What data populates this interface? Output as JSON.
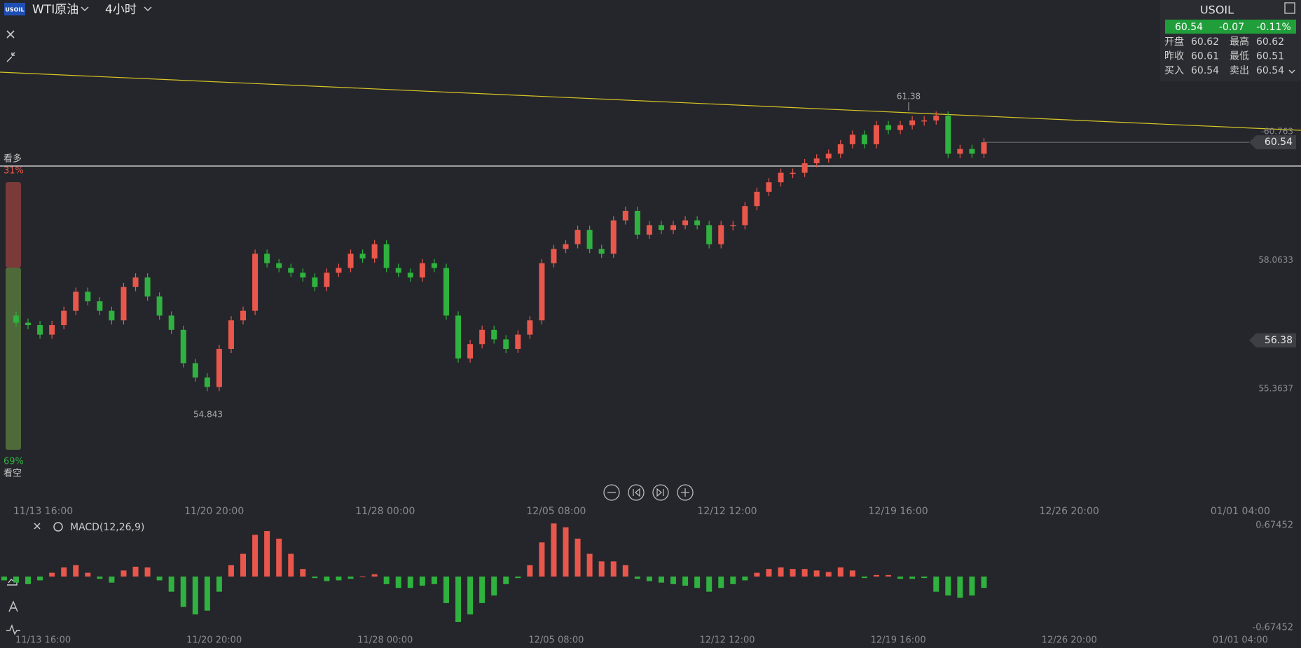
{
  "header": {
    "badge": "USOIL",
    "symbol": "WTI原油",
    "interval": "4小时"
  },
  "quote": {
    "symbol": "USOIL",
    "price": "60.54",
    "change": "-0.07",
    "change_pct": "-0.11%",
    "rows": [
      [
        "开盘",
        "60.62",
        "最高",
        "60.62"
      ],
      [
        "昨收",
        "60.61",
        "最低",
        "60.51"
      ],
      [
        "买入",
        "60.54",
        "卖出",
        "60.54"
      ]
    ]
  },
  "sentiment": {
    "bull_label": "看多",
    "bull_pct": "31%",
    "bear_pct": "69%",
    "bear_label": "看空"
  },
  "xaxis_labels": [
    "11/13 16:00",
    "11/20 20:00",
    "11/28 00:00",
    "12/05 08:00",
    "12/12 12:00",
    "12/19 16:00",
    "12/26 20:00",
    "01/01 04:00"
  ],
  "chart_data": [
    {
      "type": "candlestick",
      "close": [
        56.9,
        56.75,
        56.7,
        56.5,
        56.7,
        57.0,
        57.4,
        57.2,
        57.0,
        56.8,
        57.5,
        57.7,
        57.3,
        56.9,
        56.6,
        55.9,
        55.6,
        55.4,
        56.2,
        56.8,
        57.0,
        58.2,
        58.0,
        57.9,
        57.8,
        57.7,
        57.5,
        57.8,
        57.9,
        58.2,
        58.1,
        58.4,
        57.9,
        57.8,
        57.7,
        58.0,
        57.9,
        56.9,
        56.0,
        56.3,
        56.6,
        56.4,
        56.2,
        56.5,
        56.8,
        58.0,
        58.3,
        58.4,
        58.7,
        58.3,
        58.2,
        58.9,
        59.1,
        58.6,
        58.8,
        58.7,
        58.8,
        58.9,
        58.8,
        58.4,
        58.8,
        58.8,
        59.2,
        59.5,
        59.7,
        59.9,
        59.9,
        60.1,
        60.2,
        60.3,
        60.5,
        60.7,
        60.5,
        60.9,
        60.8,
        60.9,
        61.0,
        61.0,
        61.1,
        60.3,
        60.4,
        60.3,
        60.54
      ],
      "up_color": "#e9574c",
      "down_color": "#2fb23f",
      "ylim": [
        53.08,
        63.53
      ],
      "yticks": [
        55.3637,
        58.0633,
        60.763
      ],
      "high_label": 61.38,
      "low_label": 54.843,
      "price_tags": [
        60.54,
        56.38
      ]
    },
    {
      "type": "bar",
      "title": "MACD(12,26,9)",
      "values": [
        -0.05,
        -0.08,
        -0.1,
        -0.05,
        0.05,
        0.12,
        0.15,
        0.05,
        -0.03,
        -0.08,
        0.08,
        0.13,
        0.12,
        -0.05,
        -0.2,
        -0.4,
        -0.5,
        -0.45,
        -0.2,
        0.15,
        0.3,
        0.55,
        0.6,
        0.5,
        0.3,
        0.1,
        -0.02,
        -0.06,
        -0.05,
        -0.03,
        0.0,
        0.03,
        -0.1,
        -0.15,
        -0.15,
        -0.12,
        -0.1,
        -0.35,
        -0.6,
        -0.5,
        -0.35,
        -0.25,
        -0.1,
        -0.02,
        0.15,
        0.45,
        0.7,
        0.65,
        0.5,
        0.3,
        0.2,
        0.2,
        0.15,
        -0.03,
        -0.06,
        -0.08,
        -0.1,
        -0.12,
        -0.15,
        -0.2,
        -0.15,
        -0.1,
        -0.05,
        0.05,
        0.1,
        0.12,
        0.1,
        0.1,
        0.08,
        0.06,
        0.12,
        0.08,
        -0.02,
        0.02,
        0.02,
        -0.03,
        -0.03,
        -0.02,
        -0.2,
        -0.25,
        -0.28,
        -0.25,
        -0.15
      ],
      "up_color": "#e9574c",
      "down_color": "#2fb23f",
      "ylim": [
        -0.67452,
        0.67452
      ],
      "yticks": [
        0.67452,
        -0.67452
      ]
    }
  ]
}
